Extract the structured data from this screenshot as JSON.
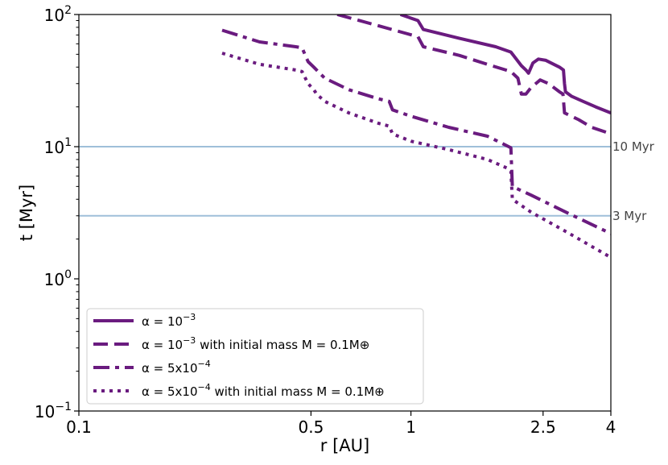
{
  "chart_data": {
    "type": "line",
    "xlabel": "r [AU]",
    "ylabel": "t [Myr]",
    "xscale": "log",
    "yscale": "log",
    "xlim": [
      0.1,
      4
    ],
    "ylim": [
      0.1,
      100
    ],
    "x_ticks": [
      {
        "value": 0.1,
        "label": "0.1"
      },
      {
        "value": 0.5,
        "label": "0.5"
      },
      {
        "value": 1,
        "label": "1"
      },
      {
        "value": 2.5,
        "label": "2.5"
      },
      {
        "value": 4,
        "label": "4"
      }
    ],
    "y_ticks": [
      {
        "value": 0.1,
        "base": "10",
        "exp": "−1"
      },
      {
        "value": 1,
        "base": "10",
        "exp": "0"
      },
      {
        "value": 10,
        "base": "10",
        "exp": "1"
      },
      {
        "value": 100,
        "base": "10",
        "exp": "2"
      }
    ],
    "hlines": [
      {
        "value": 10,
        "label": "10 Myr",
        "color": "#9fbfd9"
      },
      {
        "value": 3,
        "label": "3 Myr",
        "color": "#9fbfd9"
      }
    ],
    "legend_position": "lower-left",
    "series_color": "#6a1b7f",
    "series": [
      {
        "name": "α = 10⁻³",
        "name_parts": {
          "prefix": "α = 10",
          "sup": "−3",
          "suffix": ""
        },
        "style": "solid",
        "x": [
          0.93,
          1.05,
          1.09,
          1.4,
          1.8,
          2.0,
          2.15,
          2.22,
          2.26,
          2.33,
          2.42,
          2.55,
          2.8,
          2.88,
          2.9,
          2.92,
          3.05,
          3.3,
          3.6,
          4.0
        ],
        "y": [
          100,
          90,
          77,
          66,
          57,
          52,
          41,
          38,
          36,
          43,
          46,
          45,
          40,
          38,
          30,
          26,
          24,
          22,
          20,
          18
        ]
      },
      {
        "name": "α = 10⁻³ with initial mass M = 0.1M⊕",
        "name_parts": {
          "prefix": "α = 10",
          "sup": "−3",
          "suffix": " with initial mass M = 0.1M⊕"
        },
        "style": "dashed",
        "x": [
          0.6,
          0.8,
          1.05,
          1.09,
          1.4,
          1.75,
          2.0,
          2.1,
          2.15,
          2.22,
          2.3,
          2.45,
          2.6,
          2.8,
          2.87,
          2.9,
          3.2,
          3.5,
          4.0
        ],
        "y": [
          100,
          82,
          68,
          57,
          49,
          41,
          37,
          33,
          25,
          25,
          28,
          32,
          30,
          26,
          25,
          18,
          16,
          14,
          12.5
        ]
      },
      {
        "name": "α = 5x10⁻⁴",
        "name_parts": {
          "prefix": "α = 5x10",
          "sup": "−4",
          "suffix": ""
        },
        "style": "dashdot",
        "x": [
          0.27,
          0.35,
          0.45,
          0.47,
          0.49,
          0.51,
          0.52,
          0.55,
          0.65,
          0.8,
          0.86,
          0.88,
          1.0,
          1.3,
          1.7,
          1.97,
          2.0,
          2.02,
          2.3,
          3.0,
          4.0
        ],
        "y": [
          76,
          62,
          57,
          56,
          44,
          40,
          38,
          33,
          27,
          23,
          22,
          19,
          17,
          14,
          12,
          10,
          9.8,
          5,
          4.3,
          3.1,
          2.2
        ]
      },
      {
        "name": "α = 5x10⁻⁴ with initial mass M = 0.1M⊕",
        "name_parts": {
          "prefix": "α = 5x10",
          "sup": "−4",
          "suffix": " with initial mass M = 0.1M⊕"
        },
        "style": "dotted",
        "x": [
          0.27,
          0.35,
          0.45,
          0.47,
          0.49,
          0.51,
          0.52,
          0.55,
          0.65,
          0.8,
          0.86,
          0.88,
          1.0,
          1.3,
          1.7,
          1.97,
          2.0,
          2.02,
          2.3,
          3.0,
          4.0
        ],
        "y": [
          51,
          42,
          38,
          37,
          30,
          27,
          25,
          22,
          18,
          15,
          14.3,
          12.5,
          11,
          9.5,
          8,
          6.8,
          6.5,
          4.0,
          3.2,
          2.2,
          1.45
        ]
      }
    ]
  }
}
